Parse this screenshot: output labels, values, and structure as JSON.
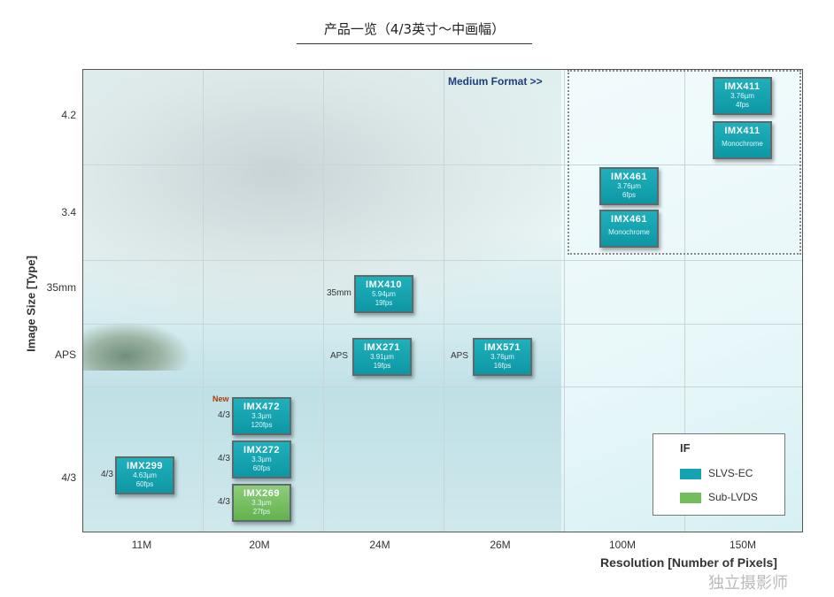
{
  "title": "产品一览（4/3英寸〜中画幅）",
  "chart_data": {
    "type": "table",
    "xlabel": "Resolution  [Number of Pixels]",
    "ylabel": "Image Size [Type]",
    "x_ticks": [
      "11M",
      "20M",
      "24M",
      "26M",
      "100M",
      "150M"
    ],
    "y_ticks": [
      "4.2",
      "3.4",
      "35mm",
      "APS",
      "4/3"
    ],
    "region_label": "Medium Format >>",
    "new_label": "New",
    "legend": {
      "title": "IF",
      "items": [
        {
          "label": "SLVS-EC",
          "color": "#14a3b0"
        },
        {
          "label": "Sub-LVDS",
          "color": "#72bd5c"
        }
      ]
    },
    "products": [
      {
        "name": "IMX411",
        "pixel": "3.76µm",
        "fps": "4fps",
        "resolution": "150M",
        "size": "4.2",
        "if": "SLVS-EC"
      },
      {
        "name": "IMX411",
        "pixel": "",
        "fps": "Monochrome",
        "resolution": "150M",
        "size": "4.2",
        "if": "SLVS-EC"
      },
      {
        "name": "IMX461",
        "pixel": "3.76µm",
        "fps": "6fps",
        "resolution": "100M",
        "size": "3.4",
        "if": "SLVS-EC"
      },
      {
        "name": "IMX461",
        "pixel": "",
        "fps": "Monochrome",
        "resolution": "100M",
        "size": "3.4",
        "if": "SLVS-EC"
      },
      {
        "name": "IMX410",
        "pixel": "5.94µm",
        "fps": "19fps",
        "resolution": "24M",
        "size": "35mm",
        "side": "35mm",
        "if": "SLVS-EC"
      },
      {
        "name": "IMX271",
        "pixel": "3.91µm",
        "fps": "19fps",
        "resolution": "24M",
        "size": "APS",
        "side": "APS",
        "if": "SLVS-EC"
      },
      {
        "name": "IMX571",
        "pixel": "3.76µm",
        "fps": "16fps",
        "resolution": "26M",
        "size": "APS",
        "side": "APS",
        "if": "SLVS-EC"
      },
      {
        "name": "IMX472",
        "pixel": "3.3µm",
        "fps": "120fps",
        "resolution": "20M",
        "size": "4/3",
        "side": "4/3",
        "if": "SLVS-EC"
      },
      {
        "name": "IMX272",
        "pixel": "3.3µm",
        "fps": "60fps",
        "resolution": "20M",
        "size": "4/3",
        "side": "4/3",
        "if": "SLVS-EC"
      },
      {
        "name": "IMX269",
        "pixel": "3.3µm",
        "fps": "27fps",
        "resolution": "20M",
        "size": "4/3",
        "side": "4/3",
        "if": "Sub-LVDS"
      },
      {
        "name": "IMX299",
        "pixel": "4.63µm",
        "fps": "60fps",
        "resolution": "11M",
        "size": "4/3",
        "side": "4/3",
        "if": "SLVS-EC"
      }
    ]
  },
  "watermark": "独立摄影师"
}
